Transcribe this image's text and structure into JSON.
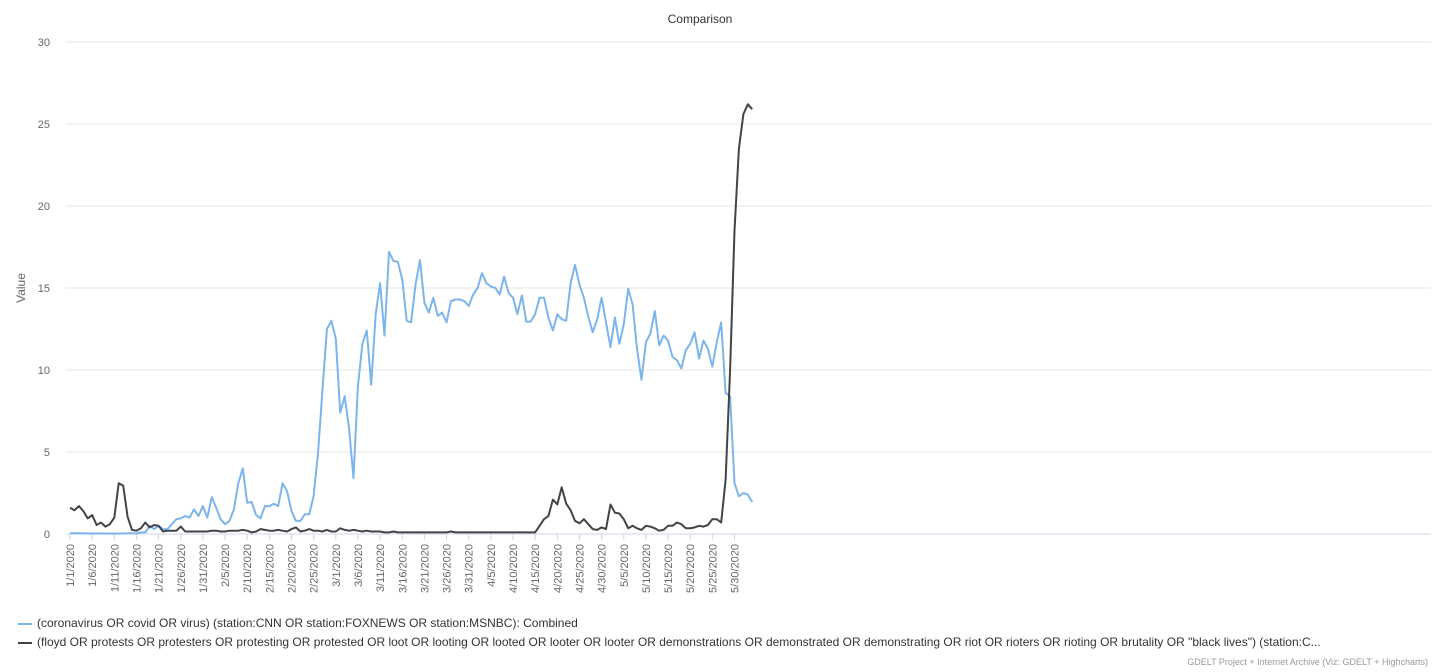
{
  "chart_data": {
    "type": "line",
    "title": "Comparison",
    "ylabel": "Value",
    "xlabel": "",
    "ylim": [
      0,
      30
    ],
    "yticks": [
      0,
      5,
      10,
      15,
      20,
      25,
      30
    ],
    "x_start": "1/1/2020",
    "x_end": "6/3/2020",
    "x_tick_labels": [
      "1/1/2020",
      "1/6/2020",
      "1/11/2020",
      "1/16/2020",
      "1/21/2020",
      "1/26/2020",
      "1/31/2020",
      "2/5/2020",
      "2/10/2020",
      "2/15/2020",
      "2/20/2020",
      "2/25/2020",
      "3/1/2020",
      "3/6/2020",
      "3/11/2020",
      "3/16/2020",
      "3/21/2020",
      "3/26/2020",
      "3/31/2020",
      "4/5/2020",
      "4/10/2020",
      "4/15/2020",
      "4/20/2020",
      "4/25/2020",
      "4/30/2020",
      "5/5/2020",
      "5/10/2020",
      "5/15/2020",
      "5/20/2020",
      "5/25/2020",
      "5/30/2020"
    ],
    "grid": true,
    "legend_position": "bottom-left",
    "series": [
      {
        "name": "(coronavirus OR covid OR virus) (station:CNN OR station:FOXNEWS OR station:MSNBC): Combined",
        "color": "#7cb5ec",
        "values": [
          0.05,
          0.04,
          0.04,
          0.04,
          0.03,
          0.03,
          0.03,
          0.03,
          0.03,
          0.03,
          0.02,
          0.03,
          0.03,
          0.04,
          0.05,
          0.03,
          0.1,
          0.1,
          0.5,
          0.3,
          0.5,
          0.3,
          0.3,
          0.6,
          0.9,
          0.95,
          1.1,
          1.0,
          1.5,
          1.1,
          1.7,
          1.0,
          2.25,
          1.6,
          0.9,
          0.6,
          0.8,
          1.5,
          3.1,
          4.0,
          1.9,
          1.95,
          1.15,
          0.95,
          1.7,
          1.7,
          1.85,
          1.7,
          3.1,
          2.6,
          1.4,
          0.8,
          0.8,
          1.2,
          1.2,
          2.3,
          5.0,
          8.8,
          12.5,
          13.0,
          11.9,
          7.4,
          8.4,
          6.4,
          3.4,
          9.0,
          11.6,
          12.4,
          9.1,
          13.4,
          15.3,
          12.1,
          17.2,
          16.65,
          16.6,
          15.5,
          13.0,
          12.9,
          15.2,
          16.7,
          14.1,
          13.5,
          14.4,
          13.3,
          13.5,
          12.9,
          14.2,
          14.3,
          14.3,
          14.2,
          13.9,
          14.6,
          15.0,
          15.9,
          15.3,
          15.1,
          15.0,
          14.6,
          15.7,
          14.7,
          14.4,
          13.4,
          14.55,
          12.95,
          12.95,
          13.4,
          14.4,
          14.4,
          13.2,
          12.4,
          13.4,
          13.1,
          13.0,
          15.3,
          16.4,
          15.2,
          14.4,
          13.25,
          12.3,
          13.1,
          14.4,
          12.9,
          11.4,
          13.2,
          11.6,
          12.8,
          14.95,
          14.0,
          11.3,
          9.4,
          11.7,
          12.2,
          13.6,
          11.5,
          12.1,
          11.8,
          10.8,
          10.6,
          10.1,
          11.2,
          11.6,
          12.3,
          10.7,
          11.8,
          11.3,
          10.2,
          11.7,
          12.9,
          8.6,
          8.4,
          3.1,
          2.3,
          2.5,
          2.4,
          1.95
        ]
      },
      {
        "name": "(floyd OR protests OR protesters OR protesting OR protested OR loot OR looting OR looted OR looter OR looter OR demonstrations OR demonstrated OR demonstrating OR riot OR rioters OR rioting OR brutality OR \"black lives\") (station:C...",
        "color": "#434348",
        "values": [
          1.6,
          1.45,
          1.7,
          1.4,
          0.95,
          1.15,
          0.55,
          0.7,
          0.45,
          0.6,
          1.0,
          3.1,
          2.95,
          1.05,
          0.25,
          0.2,
          0.35,
          0.7,
          0.4,
          0.55,
          0.5,
          0.15,
          0.2,
          0.2,
          0.2,
          0.45,
          0.15,
          0.15,
          0.15,
          0.15,
          0.15,
          0.15,
          0.2,
          0.2,
          0.15,
          0.15,
          0.2,
          0.2,
          0.2,
          0.25,
          0.2,
          0.1,
          0.15,
          0.3,
          0.25,
          0.2,
          0.2,
          0.25,
          0.2,
          0.15,
          0.3,
          0.4,
          0.15,
          0.2,
          0.3,
          0.2,
          0.2,
          0.15,
          0.25,
          0.15,
          0.15,
          0.35,
          0.25,
          0.2,
          0.25,
          0.2,
          0.15,
          0.2,
          0.15,
          0.15,
          0.15,
          0.1,
          0.1,
          0.15,
          0.1,
          0.1,
          0.1,
          0.1,
          0.1,
          0.1,
          0.1,
          0.1,
          0.1,
          0.1,
          0.1,
          0.1,
          0.15,
          0.1,
          0.1,
          0.1,
          0.1,
          0.1,
          0.1,
          0.1,
          0.1,
          0.1,
          0.1,
          0.1,
          0.1,
          0.1,
          0.1,
          0.1,
          0.1,
          0.1,
          0.1,
          0.1,
          0.5,
          0.9,
          1.1,
          2.1,
          1.8,
          2.85,
          1.85,
          1.45,
          0.8,
          0.65,
          0.9,
          0.6,
          0.3,
          0.25,
          0.4,
          0.3,
          1.8,
          1.3,
          1.25,
          0.9,
          0.35,
          0.5,
          0.35,
          0.25,
          0.5,
          0.45,
          0.35,
          0.2,
          0.25,
          0.5,
          0.5,
          0.7,
          0.6,
          0.35,
          0.35,
          0.4,
          0.5,
          0.45,
          0.55,
          0.9,
          0.9,
          0.7,
          3.3,
          10.0,
          18.5,
          23.5,
          25.6,
          26.2,
          25.9
        ]
      }
    ]
  },
  "credits": "GDELT Project + Internet Archive (Viz: GDELT + Highcharts)"
}
